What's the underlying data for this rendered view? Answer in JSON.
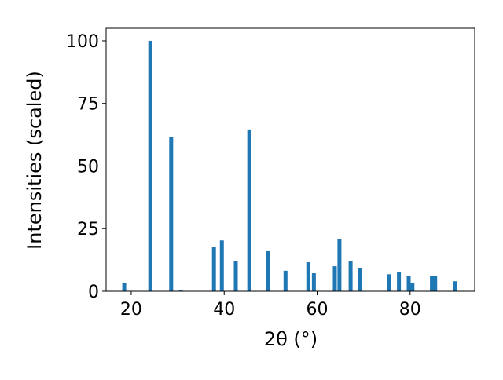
{
  "chart_data": {
    "type": "bar",
    "xlabel": "2θ (°)",
    "ylabel": "Intensities (scaled)",
    "x": [
      18.5,
      24.1,
      28.6,
      30.7,
      37.8,
      39.5,
      42.5,
      45.4,
      49.5,
      53.2,
      58.1,
      59.3,
      63.8,
      64.8,
      67.2,
      69.2,
      75.4,
      77.6,
      79.7,
      80.5,
      84.7,
      85.4,
      89.6
    ],
    "values": [
      3.3,
      100,
      61.5,
      0.3,
      17.8,
      20.3,
      12.2,
      64.6,
      16,
      8.2,
      11.6,
      7.2,
      10,
      21,
      12,
      9.4,
      6.8,
      7.8,
      6,
      3.3,
      6,
      6,
      4
    ],
    "color": "#1f77b4",
    "xlim": [
      14.6,
      93.9
    ],
    "xticks": [
      20,
      40,
      60,
      80
    ],
    "ylim": [
      0,
      105
    ],
    "yticks": [
      0,
      25,
      50,
      75,
      100
    ]
  }
}
